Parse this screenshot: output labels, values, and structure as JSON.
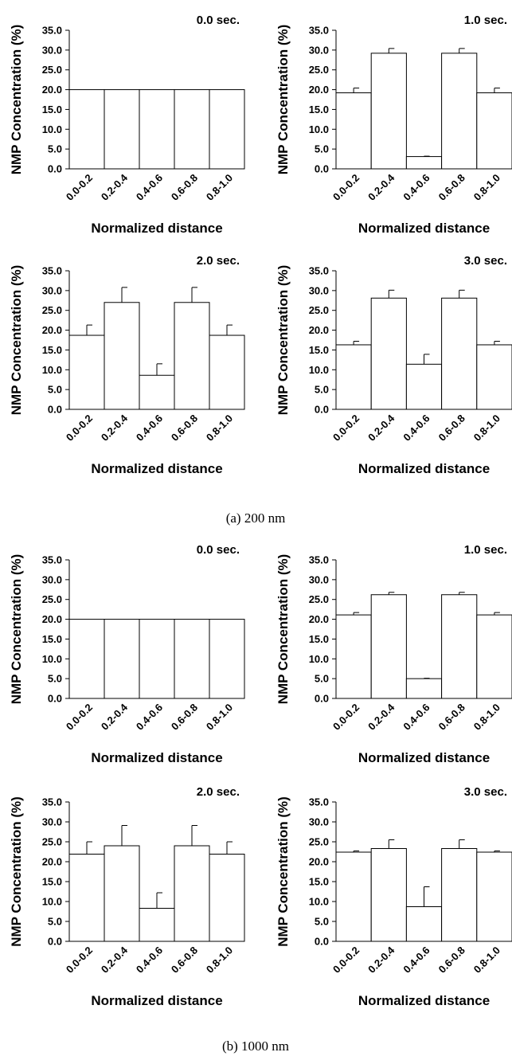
{
  "captions": [
    "(a) 200 nm",
    "(b) 1000 nm"
  ],
  "chart_data": [
    {
      "type": "bar",
      "group": 0,
      "title": "0.0 sec.",
      "xlabel": "Normalized distance",
      "ylabel": "NMP Concentration (%)",
      "categories": [
        "0.0-0.2",
        "0.2-0.4",
        "0.4-0.6",
        "0.6-0.8",
        "0.8-1.0"
      ],
      "values": [
        20.0,
        20.0,
        20.0,
        20.0,
        20.0
      ],
      "errors": [
        0,
        0,
        0,
        0,
        0
      ],
      "ylim": [
        0,
        35
      ],
      "yticks": [
        "0.0",
        "5.0",
        "10.0",
        "15.0",
        "20.0",
        "25.0",
        "30.0",
        "35.0"
      ],
      "grid": false
    },
    {
      "type": "bar",
      "group": 0,
      "title": "1.0 sec.",
      "xlabel": "Normalized distance",
      "ylabel": "NMP Concentration (%)",
      "categories": [
        "0.0-0.2",
        "0.2-0.4",
        "0.4-0.6",
        "0.6-0.8",
        "0.8-1.0"
      ],
      "values": [
        19.2,
        29.2,
        3.1,
        29.2,
        19.2
      ],
      "errors": [
        1.2,
        1.2,
        0.1,
        1.2,
        1.2
      ],
      "ylim": [
        0,
        35
      ],
      "yticks": [
        "0.0",
        "5.0",
        "10.0",
        "15.0",
        "20.0",
        "25.0",
        "30.0",
        "35.0"
      ],
      "grid": false
    },
    {
      "type": "bar",
      "group": 0,
      "title": "2.0 sec.",
      "xlabel": "Normalized distance",
      "ylabel": "NMP Concentration (%)",
      "categories": [
        "0.0-0.2",
        "0.2-0.4",
        "0.4-0.6",
        "0.6-0.8",
        "0.8-1.0"
      ],
      "values": [
        18.7,
        27.0,
        8.6,
        27.0,
        18.7
      ],
      "errors": [
        2.6,
        3.8,
        2.9,
        3.8,
        2.6
      ],
      "ylim": [
        0,
        35
      ],
      "yticks": [
        "0.0",
        "5.0",
        "10.0",
        "15.0",
        "20.0",
        "25.0",
        "30.0",
        "35.0"
      ],
      "grid": false
    },
    {
      "type": "bar",
      "group": 0,
      "title": "3.0 sec.",
      "xlabel": "Normalized distance",
      "ylabel": "NMP Concentration (%)",
      "categories": [
        "0.0-0.2",
        "0.2-0.4",
        "0.4-0.6",
        "0.6-0.8",
        "0.8-1.0"
      ],
      "values": [
        16.3,
        28.1,
        11.4,
        28.1,
        16.3
      ],
      "errors": [
        0.9,
        2.0,
        2.5,
        2.0,
        0.9
      ],
      "ylim": [
        0,
        35
      ],
      "yticks": [
        "0.0",
        "5.0",
        "10.0",
        "15.0",
        "20.0",
        "25.0",
        "30.0",
        "35.0"
      ],
      "grid": false
    },
    {
      "type": "bar",
      "group": 1,
      "title": "0.0 sec.",
      "xlabel": "Normalized distance",
      "ylabel": "NMP Concentration (%)",
      "categories": [
        "0.0-0.2",
        "0.2-0.4",
        "0.4-0.6",
        "0.6-0.8",
        "0.8-1.0"
      ],
      "values": [
        20.0,
        20.0,
        20.0,
        20.0,
        20.0
      ],
      "errors": [
        0,
        0,
        0,
        0,
        0
      ],
      "ylim": [
        0,
        35
      ],
      "yticks": [
        "0.0",
        "5.0",
        "10.0",
        "15.0",
        "20.0",
        "25.0",
        "30.0",
        "35.0"
      ],
      "grid": false
    },
    {
      "type": "bar",
      "group": 1,
      "title": "1.0 sec.",
      "xlabel": "Normalized distance",
      "ylabel": "NMP Concentration (%)",
      "categories": [
        "0.0-0.2",
        "0.2-0.4",
        "0.4-0.6",
        "0.6-0.8",
        "0.8-1.0"
      ],
      "values": [
        21.1,
        26.2,
        5.0,
        26.2,
        21.1
      ],
      "errors": [
        0.6,
        0.6,
        0.1,
        0.6,
        0.6
      ],
      "ylim": [
        0,
        35
      ],
      "yticks": [
        "0.0",
        "5.0",
        "10.0",
        "15.0",
        "20.0",
        "25.0",
        "30.0",
        "35.0"
      ],
      "grid": false
    },
    {
      "type": "bar",
      "group": 1,
      "title": "2.0 sec.",
      "xlabel": "Normalized distance",
      "ylabel": "NMP Concentration (%)",
      "categories": [
        "0.0-0.2",
        "0.2-0.4",
        "0.4-0.6",
        "0.6-0.8",
        "0.8-1.0"
      ],
      "values": [
        21.9,
        24.0,
        8.3,
        24.0,
        21.9
      ],
      "errors": [
        3.1,
        5.1,
        3.9,
        5.1,
        3.1
      ],
      "ylim": [
        0,
        35
      ],
      "yticks": [
        "0.0",
        "5.0",
        "10.0",
        "15.0",
        "20.0",
        "25.0",
        "30.0",
        "35.0"
      ],
      "grid": false
    },
    {
      "type": "bar",
      "group": 1,
      "title": "3.0 sec.",
      "xlabel": "Normalized distance",
      "ylabel": "NMP Concentration (%)",
      "categories": [
        "0.0-0.2",
        "0.2-0.4",
        "0.4-0.6",
        "0.6-0.8",
        "0.8-1.0"
      ],
      "values": [
        22.4,
        23.3,
        8.7,
        23.3,
        22.4
      ],
      "errors": [
        0.3,
        2.2,
        5.0,
        2.2,
        0.3
      ],
      "ylim": [
        0,
        35
      ],
      "yticks": [
        "0.0",
        "5.0",
        "10.0",
        "15.0",
        "20.0",
        "25.0",
        "30.0",
        "35.0"
      ],
      "grid": false
    }
  ]
}
